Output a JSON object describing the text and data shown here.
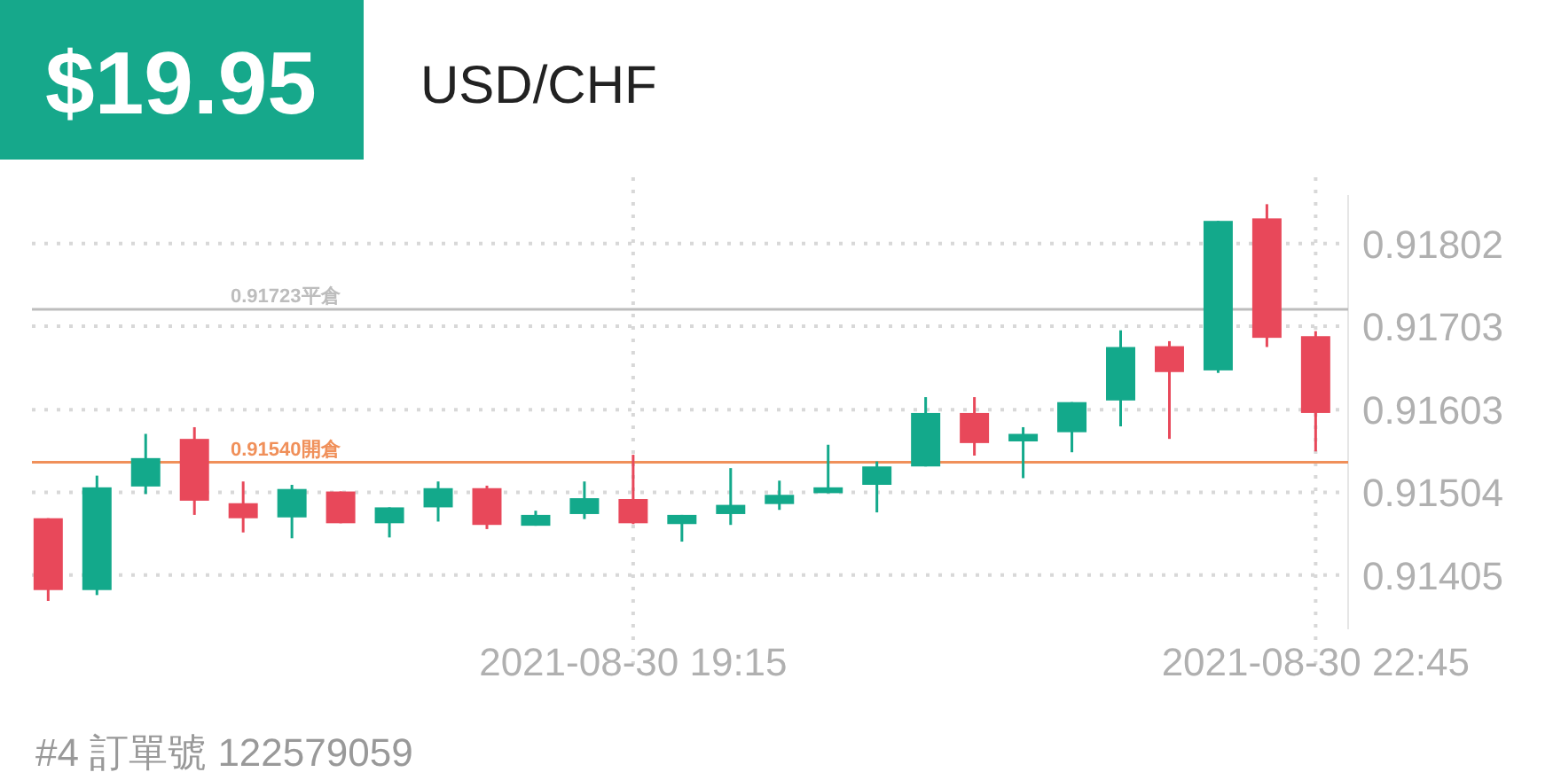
{
  "chart_data": {
    "type": "candlestick",
    "title": "USD/CHF",
    "annotations": [
      "$19.95",
      "#4   訂單號 122579059"
    ],
    "x": [
      "2021-08-30T16:15",
      "2021-08-30T16:30",
      "2021-08-30T16:45",
      "2021-08-30T17:00",
      "2021-08-30T17:15",
      "2021-08-30T17:30",
      "2021-08-30T17:45",
      "2021-08-30T18:00",
      "2021-08-30T18:15",
      "2021-08-30T18:30",
      "2021-08-30T18:45",
      "2021-08-30T19:00",
      "2021-08-30T19:15",
      "2021-08-30T19:30",
      "2021-08-30T19:45",
      "2021-08-30T20:00",
      "2021-08-30T20:15",
      "2021-08-30T20:30",
      "2021-08-30T20:45",
      "2021-08-30T21:00",
      "2021-08-30T21:15",
      "2021-08-30T21:30",
      "2021-08-30T21:45",
      "2021-08-30T22:00",
      "2021-08-30T22:15",
      "2021-08-30T22:30",
      "2021-08-30T22:45"
    ],
    "ohlc": [
      [
        0.91473,
        0.91473,
        0.91374,
        0.91387
      ],
      [
        0.91387,
        0.91524,
        0.91381,
        0.9151
      ],
      [
        0.91511,
        0.91574,
        0.91502,
        0.91545
      ],
      [
        0.91568,
        0.91582,
        0.91477,
        0.91494
      ],
      [
        0.91491,
        0.91517,
        0.91456,
        0.91473
      ],
      [
        0.91474,
        0.91513,
        0.91449,
        0.91508
      ],
      [
        0.91505,
        0.91505,
        0.91467,
        0.91467
      ],
      [
        0.91467,
        0.91486,
        0.9145,
        0.91486
      ],
      [
        0.91486,
        0.91517,
        0.91469,
        0.91509
      ],
      [
        0.91509,
        0.91512,
        0.9146,
        0.91465
      ],
      [
        0.91464,
        0.91482,
        0.91464,
        0.91477
      ],
      [
        0.91478,
        0.91517,
        0.91472,
        0.91497
      ],
      [
        0.91496,
        0.91549,
        0.91466,
        0.91467
      ],
      [
        0.91466,
        0.91477,
        0.91445,
        0.91477
      ],
      [
        0.91478,
        0.91533,
        0.91465,
        0.91489
      ],
      [
        0.9149,
        0.91518,
        0.91483,
        0.91501
      ],
      [
        0.91503,
        0.91561,
        0.91503,
        0.9151
      ],
      [
        0.91513,
        0.91541,
        0.9148,
        0.91535
      ],
      [
        0.91535,
        0.91618,
        0.91535,
        0.91599
      ],
      [
        0.91599,
        0.91618,
        0.91548,
        0.91563
      ],
      [
        0.91565,
        0.91582,
        0.91521,
        0.91574
      ],
      [
        0.91576,
        0.91612,
        0.91552,
        0.91612
      ],
      [
        0.91614,
        0.91698,
        0.91583,
        0.91678
      ],
      [
        0.91679,
        0.91685,
        0.91568,
        0.91648
      ],
      [
        0.9165,
        0.91829,
        0.91647,
        0.91829
      ],
      [
        0.91832,
        0.91849,
        0.91678,
        0.91689
      ],
      [
        0.91691,
        0.91697,
        0.91553,
        0.91599
      ]
    ],
    "colors": [
      "#e8485a",
      "#13a98b",
      "#13a98b",
      "#e8485a",
      "#e8485a",
      "#13a98b",
      "#e8485a",
      "#13a98b",
      "#13a98b",
      "#e8485a",
      "#13a98b",
      "#13a98b",
      "#e8485a",
      "#13a98b",
      "#13a98b",
      "#13a98b",
      "#13a98b",
      "#13a98b",
      "#13a98b",
      "#e8485a",
      "#13a98b",
      "#13a98b",
      "#13a98b",
      "#e8485a",
      "#13a98b",
      "#e8485a",
      "#e8485a"
    ],
    "xlim": [
      "2021-08-30T16:10",
      "2021-08-30T22:55"
    ],
    "xticks": [
      {
        "value": "2021-08-30T19:15",
        "label": "2021-08-30 19:15"
      },
      {
        "value": "2021-08-30T22:45",
        "label": "2021-08-30 22:45"
      }
    ],
    "ylim": [
      0.9134,
      0.9186
    ],
    "yticks": [
      0.91405,
      0.91504,
      0.91603,
      0.91703,
      0.91802
    ],
    "grid": true,
    "ref_lines": [
      {
        "axis": "y",
        "value": 0.91723,
        "label": "0.91723平倉",
        "color": "#bdbdbd"
      },
      {
        "axis": "y",
        "value": 0.9154,
        "label": "0.91540開倉",
        "color": "#f0905a"
      }
    ]
  }
}
